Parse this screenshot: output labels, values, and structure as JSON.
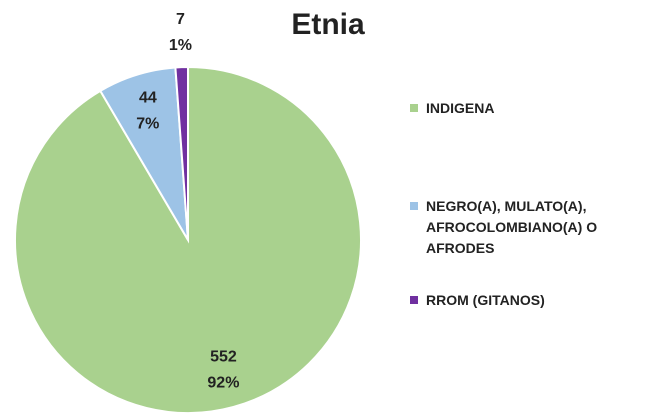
{
  "chart_data": {
    "type": "pie",
    "title": "Etnia",
    "categories": [
      "INDIGENA",
      "NEGRO(A), MULATO(A), AFROCOLOMBIANO(A) O AFRODES",
      "RROM (GITANOS)"
    ],
    "values": [
      552,
      44,
      7
    ],
    "percent_labels": [
      "92%",
      "7%",
      "1%"
    ],
    "colors": [
      "#a9d18e",
      "#9dc3e6",
      "#7030a0"
    ],
    "legend": "right"
  }
}
